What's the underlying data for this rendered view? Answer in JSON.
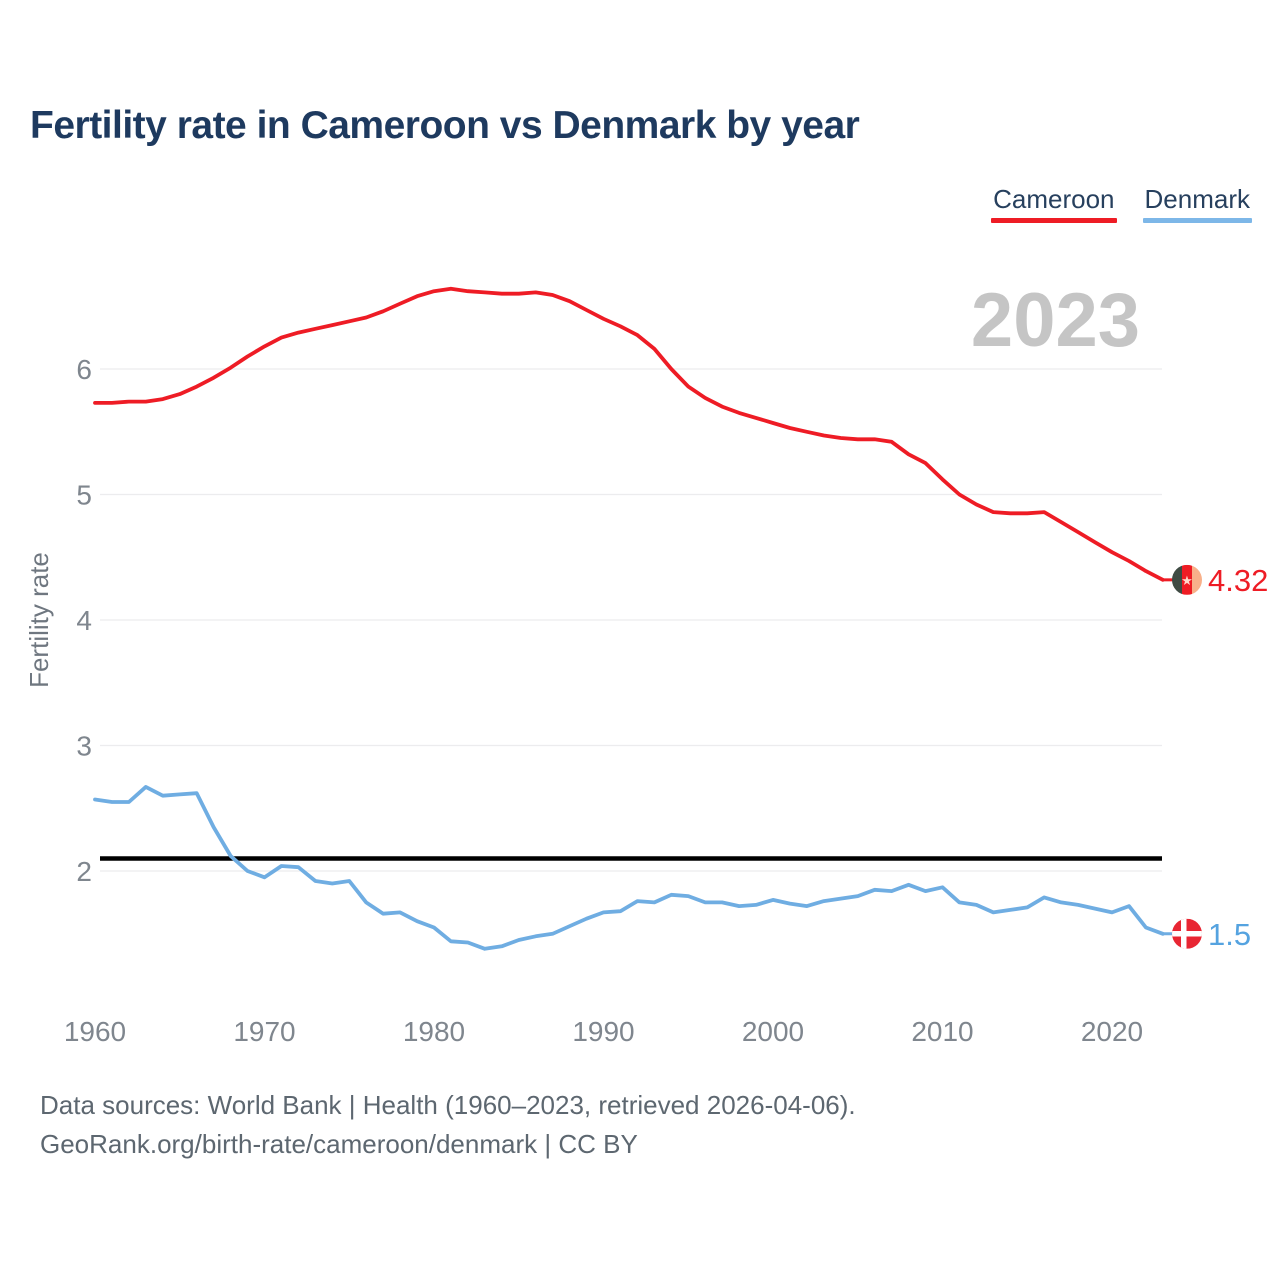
{
  "title": "Fertility rate in Cameroon vs Denmark by year",
  "watermark": "2023",
  "legend": [
    {
      "label": "Cameroon",
      "color": "#ee1c25"
    },
    {
      "label": "Denmark",
      "color": "#7db7e8"
    }
  ],
  "y_axis": {
    "label": "Fertility rate",
    "ticks": [
      2,
      3,
      4,
      5,
      6
    ]
  },
  "x_axis": {
    "ticks": [
      1960,
      1970,
      1980,
      1990,
      2000,
      2010,
      2020
    ]
  },
  "replacement_line": {
    "value": 2.1,
    "color": "#000000"
  },
  "end_labels": {
    "cameroon": {
      "text": "4.32",
      "color": "#ee1c25"
    },
    "denmark": {
      "text": "1.5",
      "color": "#55a3e0"
    }
  },
  "flags": {
    "cameroon": {
      "stripes": [
        "#3f4b43",
        "#ee1c24",
        "#f8b08a"
      ],
      "star": "#ffd9cc"
    },
    "denmark": {
      "background": "#e82633",
      "cross": "#ffffff"
    }
  },
  "source": {
    "line1": "Data sources: World Bank | Health (1960–2023, retrieved 2026-04-06).",
    "line2": "GeoRank.org/birth-rate/cameroon/denmark | CC BY"
  },
  "chart_data": {
    "type": "line",
    "title": "Fertility rate in Cameroon vs Denmark by year",
    "xlabel": "",
    "ylabel": "Fertility rate",
    "ylim": [
      0.9,
      6.9
    ],
    "xlim": [
      1960,
      2023
    ],
    "grid": "horizontal",
    "legend_position": "top-right",
    "x": [
      1960,
      1961,
      1962,
      1963,
      1964,
      1965,
      1966,
      1967,
      1968,
      1969,
      1970,
      1971,
      1972,
      1973,
      1974,
      1975,
      1976,
      1977,
      1978,
      1979,
      1980,
      1981,
      1982,
      1983,
      1984,
      1985,
      1986,
      1987,
      1988,
      1989,
      1990,
      1991,
      1992,
      1993,
      1994,
      1995,
      1996,
      1997,
      1998,
      1999,
      2000,
      2001,
      2002,
      2003,
      2004,
      2005,
      2006,
      2007,
      2008,
      2009,
      2010,
      2011,
      2012,
      2013,
      2014,
      2015,
      2016,
      2017,
      2018,
      2019,
      2020,
      2021,
      2022,
      2023
    ],
    "series": [
      {
        "name": "Cameroon",
        "color": "#ee1c25",
        "values": [
          5.73,
          5.73,
          5.74,
          5.74,
          5.76,
          5.8,
          5.86,
          5.93,
          6.01,
          6.1,
          6.18,
          6.25,
          6.29,
          6.32,
          6.35,
          6.38,
          6.41,
          6.46,
          6.52,
          6.58,
          6.62,
          6.64,
          6.62,
          6.61,
          6.6,
          6.6,
          6.61,
          6.59,
          6.54,
          6.47,
          6.4,
          6.34,
          6.27,
          6.16,
          6.0,
          5.86,
          5.77,
          5.7,
          5.65,
          5.61,
          5.57,
          5.53,
          5.5,
          5.47,
          5.45,
          5.44,
          5.44,
          5.42,
          5.32,
          5.25,
          5.12,
          5.0,
          4.92,
          4.86,
          4.85,
          4.85,
          4.86,
          4.78,
          4.7,
          4.62,
          4.54,
          4.47,
          4.39,
          4.32
        ]
      },
      {
        "name": "Denmark",
        "color": "#6fade2",
        "values": [
          2.57,
          2.55,
          2.55,
          2.67,
          2.6,
          2.61,
          2.62,
          2.35,
          2.12,
          2.0,
          1.95,
          2.04,
          2.03,
          1.92,
          1.9,
          1.92,
          1.75,
          1.66,
          1.67,
          1.6,
          1.55,
          1.44,
          1.43,
          1.38,
          1.4,
          1.45,
          1.48,
          1.5,
          1.56,
          1.62,
          1.67,
          1.68,
          1.76,
          1.75,
          1.81,
          1.8,
          1.75,
          1.75,
          1.72,
          1.73,
          1.77,
          1.74,
          1.72,
          1.76,
          1.78,
          1.8,
          1.85,
          1.84,
          1.89,
          1.84,
          1.87,
          1.75,
          1.73,
          1.67,
          1.69,
          1.71,
          1.79,
          1.75,
          1.73,
          1.7,
          1.67,
          1.72,
          1.55,
          1.5
        ]
      }
    ]
  }
}
